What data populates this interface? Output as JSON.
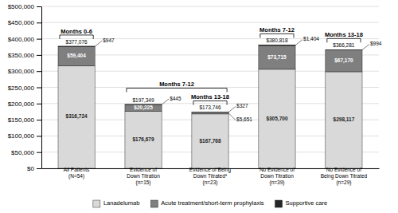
{
  "chart_data": {
    "type": "bar",
    "stacked": true,
    "categories": [
      "All Patients\n(N=54)",
      "Evidence of\nDown Titration\n(n=15)",
      "Evidence of Being\nDown Titrated*\n(n=23)",
      "No Evidence of\nDown Titration\n(n=39)",
      "No Evidence of\nBeing Down Titrated\n(n=29)"
    ],
    "series": [
      {
        "name": "Lanadelumab",
        "color": "#d9d9d9",
        "values": [
          316724,
          176679,
          167768,
          305700,
          298117
        ],
        "value_labels": [
          "$316,724",
          "$176,679",
          "$167,768",
          "$305,700",
          "$298,117"
        ]
      },
      {
        "name": "Acute treatment/short-term prophylaxis",
        "color": "#7f7f7f",
        "values": [
          59404,
          20225,
          5651,
          73715,
          67170
        ],
        "value_labels": [
          "$59,404",
          "$20,225",
          "$5,651",
          "$73,715",
          "$67,170"
        ]
      },
      {
        "name": "Supportive care",
        "color": "#252525",
        "values": [
          947,
          445,
          327,
          1404,
          994
        ],
        "value_labels": [
          "$947",
          "$445",
          "$327",
          "$1,404",
          "$994"
        ]
      }
    ],
    "totals": [
      377076,
      197349,
      173746,
      380818,
      366281
    ],
    "total_labels": [
      "$377,076",
      "$197,349",
      "$173,746",
      "$380,818",
      "$366,281"
    ],
    "annotations": [
      {
        "text": "Months 0-6",
        "span": [
          0,
          0
        ]
      },
      {
        "text": "Months 7-12",
        "span": [
          1,
          2
        ]
      },
      {
        "text": "Months 13-18",
        "span": [
          2,
          2
        ]
      },
      {
        "text": "Months 7-12",
        "span": [
          3,
          3
        ]
      },
      {
        "text": "Months 13-18",
        "span": [
          4,
          4
        ]
      }
    ],
    "ylim": [
      0,
      500000
    ],
    "yticks": [
      {
        "value": 0,
        "label": "$0"
      },
      {
        "value": 50000,
        "label": "$50,000"
      },
      {
        "value": 100000,
        "label": "$100,000"
      },
      {
        "value": 150000,
        "label": "$150,000"
      },
      {
        "value": 200000,
        "label": "$200,000"
      },
      {
        "value": 250000,
        "label": "$250,000"
      },
      {
        "value": 300000,
        "label": "$300,000"
      },
      {
        "value": 350000,
        "label": "$350,000"
      },
      {
        "value": 400000,
        "label": "$400,000"
      },
      {
        "value": 450000,
        "label": "$450,000"
      },
      {
        "value": 500000,
        "label": "$500,000"
      }
    ],
    "grid": true,
    "legend": "bottom",
    "data_labels": true
  }
}
